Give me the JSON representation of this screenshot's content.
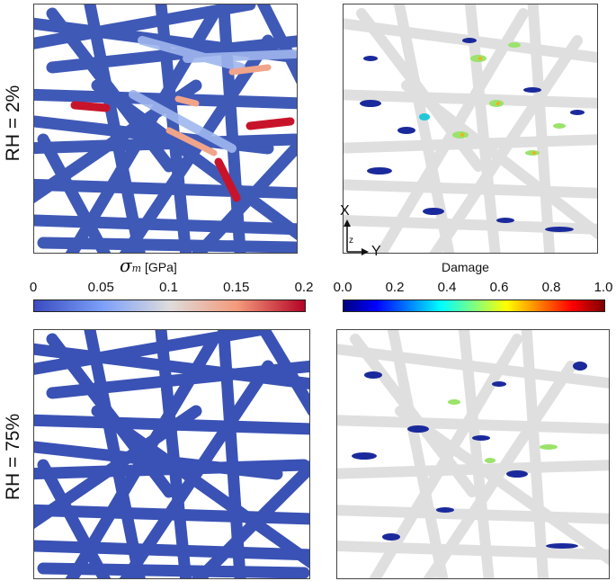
{
  "rows": [
    {
      "label": "RH = 2%"
    },
    {
      "label": "RH = 75%"
    }
  ],
  "stress_colorbar": {
    "symbol": "σ",
    "subscript": "m",
    "unit": "[GPa]",
    "ticks": [
      "0",
      "0.05",
      "0.1",
      "0.15",
      "0.2"
    ],
    "colors": [
      "#3b4cc0",
      "#7b9ff9",
      "#dddcdc",
      "#f49a7b",
      "#b40426"
    ]
  },
  "damage_colorbar": {
    "title": "Damage",
    "ticks": [
      "0.0",
      "0.2",
      "0.4",
      "0.6",
      "0.8",
      "1.0"
    ],
    "colors": [
      "#00007f",
      "#0000ff",
      "#007fff",
      "#00ffff",
      "#7fff7f",
      "#ffff00",
      "#ff7f00",
      "#ff0000",
      "#7f0000"
    ]
  },
  "axes_triad": {
    "x": "X",
    "y": "Y",
    "z": "z"
  },
  "colors": {
    "fiber": "#3f59b7",
    "fiber_ghost": "#d8d8d8",
    "damage_low": "#1a2a9c"
  }
}
